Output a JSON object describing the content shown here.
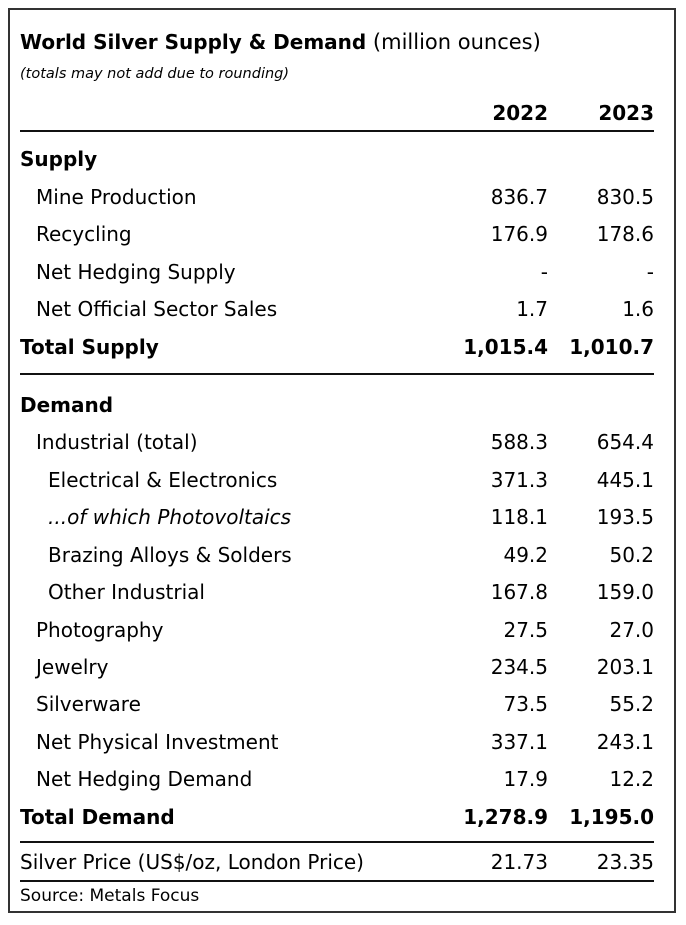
{
  "table": {
    "title_bold": "World Silver Supply & Demand",
    "title_unit": "(million ounces)",
    "note": "(totals may not add due to rounding)",
    "years": [
      "2022",
      "2023"
    ],
    "supply": {
      "heading": "Supply",
      "rows": [
        {
          "label": "Mine Production",
          "v2022": "836.7",
          "v2023": "830.5"
        },
        {
          "label": "Recycling",
          "v2022": "176.9",
          "v2023": "178.6"
        },
        {
          "label": "Net Hedging Supply",
          "v2022": "-",
          "v2023": "-"
        },
        {
          "label": "Net Official Sector Sales",
          "v2022": "1.7",
          "v2023": "1.6"
        }
      ],
      "total": {
        "label": "Total Supply",
        "v2022": "1,015.4",
        "v2023": "1,010.7"
      }
    },
    "demand": {
      "heading": "Demand",
      "rows": [
        {
          "label": "Industrial (total)",
          "v2022": "588.3",
          "v2023": "654.4"
        },
        {
          "label": "Electrical & Electronics",
          "v2022": "371.3",
          "v2023": "445.1"
        },
        {
          "label": "...of which Photovoltaics",
          "v2022": "118.1",
          "v2023": "193.5"
        },
        {
          "label": "Brazing Alloys & Solders",
          "v2022": "49.2",
          "v2023": "50.2"
        },
        {
          "label": "Other Industrial",
          "v2022": "167.8",
          "v2023": "159.0"
        },
        {
          "label": "Photography",
          "v2022": "27.5",
          "v2023": "27.0"
        },
        {
          "label": "Jewelry",
          "v2022": "234.5",
          "v2023": "203.1"
        },
        {
          "label": "Silverware",
          "v2022": "73.5",
          "v2023": "55.2"
        },
        {
          "label": "Net Physical Investment",
          "v2022": "337.1",
          "v2023": "243.1"
        },
        {
          "label": "Net Hedging Demand",
          "v2022": "17.9",
          "v2023": "12.2"
        }
      ],
      "total": {
        "label": "Total Demand",
        "v2022": "1,278.9",
        "v2023": "1,195.0"
      }
    },
    "price": {
      "label": "Silver Price (US$/oz, London Price)",
      "v2022": "21.73",
      "v2023": "23.35"
    },
    "source": "Source: Metals Focus"
  }
}
